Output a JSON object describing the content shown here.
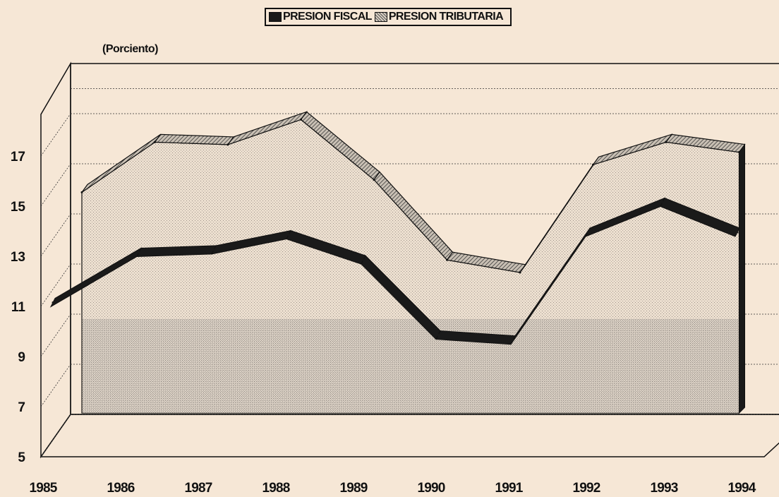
{
  "legend": {
    "fiscal_label": "PRESION FISCAL",
    "tributaria_label": "PRESION TRIBUTARIA"
  },
  "unit_label": "(Porciento)",
  "colors": {
    "background": "#f6e7d6",
    "fiscal": "#1a1a1a",
    "tributaria_fill": "#e9dccb",
    "tributaria_front_band": "#8a8a8a"
  },
  "chart_data": {
    "type": "area",
    "three_d": true,
    "title": "",
    "xlabel": "",
    "ylabel": "(Porciento)",
    "categories": [
      "1985",
      "1986",
      "1987",
      "1988",
      "1989",
      "1990",
      "1991",
      "1992",
      "1993",
      "1994"
    ],
    "y_ticks": [
      "5",
      "7",
      "9",
      "11",
      "13",
      "15",
      "17"
    ],
    "ylim": [
      5,
      19
    ],
    "grid": true,
    "legend_position": "top-center",
    "series": [
      {
        "name": "PRESION FISCAL",
        "render": "ribbon",
        "values": [
          11.1,
          13.1,
          13.2,
          13.8,
          12.8,
          9.8,
          9.6,
          13.9,
          15.1,
          13.9
        ]
      },
      {
        "name": "PRESION TRIBUTARIA",
        "render": "area",
        "values": [
          15.3,
          17.3,
          17.2,
          18.2,
          15.8,
          12.6,
          12.1,
          16.4,
          17.3,
          16.9
        ]
      }
    ]
  }
}
